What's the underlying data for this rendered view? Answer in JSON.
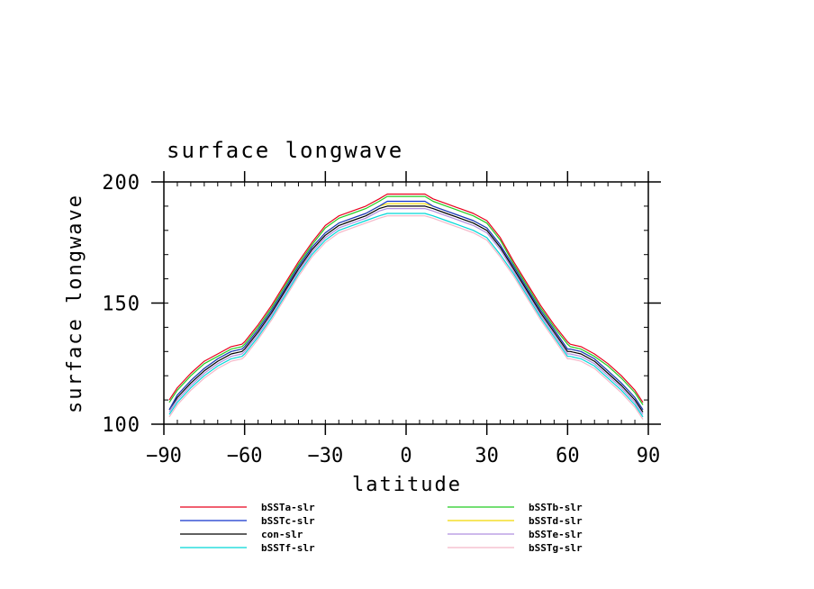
{
  "chart_data": {
    "type": "line",
    "title": "surface longwave",
    "xlabel": "latitude",
    "ylabel": "surface longwave",
    "xlim": [
      -90,
      90
    ],
    "ylim": [
      100,
      200
    ],
    "x_ticks": [
      -90,
      -60,
      -30,
      0,
      30,
      60,
      90
    ],
    "x_tick_labels": [
      "−90",
      "−60",
      "−30",
      "0",
      "30",
      "60",
      "90"
    ],
    "y_ticks": [
      100,
      150,
      200
    ],
    "y_tick_labels": [
      "100",
      "150",
      "200"
    ],
    "x": [
      -88,
      -85,
      -80,
      -75,
      -70,
      -65,
      -61,
      -60,
      -55,
      -50,
      -45,
      -40,
      -35,
      -30,
      -25,
      -20,
      -15,
      -10,
      -7,
      -5,
      0,
      5,
      7,
      10,
      15,
      20,
      25,
      30,
      35,
      40,
      45,
      50,
      55,
      60,
      61,
      65,
      70,
      75,
      80,
      85,
      88
    ],
    "series": [
      {
        "name": "bSSTa-slr",
        "color": "#e8001c",
        "values": [
          110,
          115,
          121,
          126,
          129,
          132,
          133,
          134,
          141,
          149,
          158,
          167,
          175,
          182,
          186,
          188,
          190,
          193,
          195,
          195,
          195,
          195,
          195,
          193,
          191,
          189,
          187,
          184,
          177,
          167,
          158,
          149,
          141,
          134,
          133,
          132,
          129,
          125,
          120,
          114,
          109
        ]
      },
      {
        "name": "bSSTb-slr",
        "color": "#22cc22",
        "values": [
          109,
          114,
          120,
          125,
          128,
          131,
          132,
          133,
          140,
          148,
          157,
          166,
          174,
          181,
          185,
          187,
          189,
          192,
          194,
          194,
          194,
          194,
          194,
          192,
          190,
          188,
          186,
          183,
          176,
          166,
          157,
          148,
          140,
          133,
          132,
          131,
          128,
          124,
          119,
          113,
          108
        ]
      },
      {
        "name": "bSSTc-slr",
        "color": "#1133cc",
        "values": [
          106,
          112,
          118,
          123,
          127,
          130,
          131,
          132,
          139,
          147,
          156,
          165,
          173,
          179,
          183,
          185,
          187,
          190,
          192,
          192,
          192,
          192,
          192,
          190,
          188,
          186,
          184,
          181,
          174,
          165,
          156,
          147,
          139,
          131,
          131,
          130,
          127,
          122,
          117,
          111,
          106
        ]
      },
      {
        "name": "bSSTd-slr",
        "color": "#f2d800",
        "values": [
          106,
          112,
          118,
          123,
          127,
          130,
          131,
          132,
          139,
          147,
          156,
          165,
          173,
          179,
          183,
          185,
          187,
          190,
          191,
          191,
          191,
          191,
          191,
          190,
          188,
          186,
          184,
          181,
          174,
          165,
          156,
          147,
          139,
          131,
          131,
          130,
          127,
          122,
          117,
          111,
          106
        ]
      },
      {
        "name": "con-slr",
        "color": "#000000",
        "values": [
          106,
          111,
          117,
          122,
          126,
          129,
          130,
          131,
          138,
          146,
          155,
          164,
          172,
          178,
          182,
          184,
          186,
          189,
          190,
          190,
          190,
          190,
          190,
          189,
          187,
          185,
          183,
          180,
          173,
          164,
          155,
          146,
          138,
          130,
          130,
          129,
          126,
          121,
          116,
          110,
          105
        ]
      },
      {
        "name": "bSSTe-slr",
        "color": "#b08fe0",
        "values": [
          105,
          110,
          116,
          121,
          125,
          128,
          129,
          130,
          137,
          145,
          154,
          163,
          171,
          177,
          181,
          183,
          185,
          188,
          189,
          189,
          189,
          189,
          189,
          188,
          186,
          184,
          182,
          179,
          172,
          163,
          154,
          145,
          137,
          129,
          129,
          128,
          125,
          120,
          115,
          109,
          104
        ]
      },
      {
        "name": "bSSTf-slr",
        "color": "#00d8d8",
        "values": [
          104,
          109,
          115,
          120,
          124,
          127,
          128,
          129,
          136,
          144,
          153,
          162,
          170,
          176,
          180,
          182,
          184,
          186,
          187,
          187,
          187,
          187,
          187,
          186,
          184,
          182,
          180,
          177,
          170,
          162,
          153,
          144,
          136,
          128,
          128,
          127,
          124,
          119,
          114,
          108,
          103
        ]
      },
      {
        "name": "bSSTg-slr",
        "color": "#f4b8c8",
        "values": [
          103,
          108,
          114,
          119,
          123,
          126,
          127,
          128,
          135,
          143,
          152,
          161,
          169,
          175,
          179,
          181,
          183,
          185,
          186,
          186,
          186,
          186,
          186,
          185,
          183,
          181,
          179,
          176,
          169,
          161,
          152,
          143,
          135,
          127,
          127,
          126,
          123,
          118,
          113,
          107,
          102
        ]
      }
    ],
    "legend_order": [
      "bSSTa-slr",
      "bSSTb-slr",
      "bSSTc-slr",
      "bSSTd-slr",
      "con-slr",
      "bSSTe-slr",
      "bSSTf-slr",
      "bSSTg-slr"
    ],
    "legend_placement": "bottom, two columns",
    "grid": false
  }
}
